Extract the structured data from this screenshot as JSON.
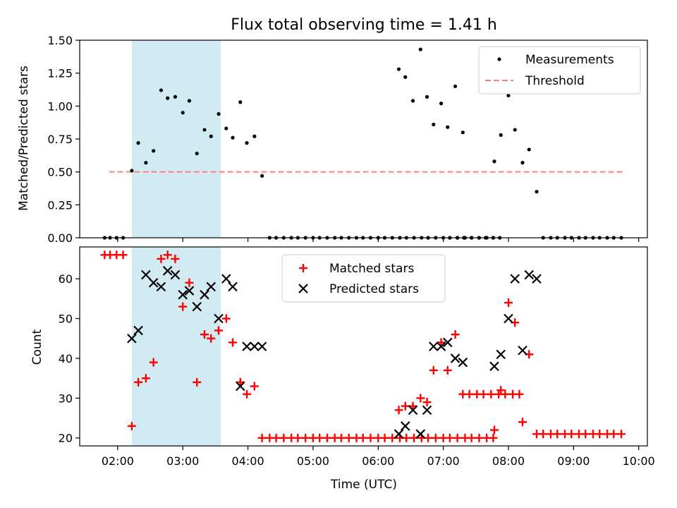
{
  "figure": {
    "title": "Flux total observing time = 1.41 h"
  },
  "chart_data": [
    {
      "type": "scatter",
      "ylabel": "Matched/Predicted stars",
      "xlim": [
        "01:25",
        "10:08"
      ],
      "ylim": [
        0,
        1.5
      ],
      "yticks": [
        "0.00",
        "0.25",
        "0.50",
        "0.75",
        "1.00",
        "1.25",
        "1.50"
      ],
      "ytick_values": [
        0,
        0.25,
        0.5,
        0.75,
        1.0,
        1.25,
        1.5
      ],
      "legend": {
        "position": "top-right",
        "entries": [
          "Measurements",
          "Threshold"
        ]
      },
      "shaded_interval": {
        "from": "02:13",
        "to": "03:35",
        "color": "#add8e6"
      },
      "threshold": {
        "name": "Threshold",
        "value": 0.5,
        "from": "01:52",
        "to": "09:45",
        "color": "#ff7f7f"
      },
      "series": [
        {
          "name": "Measurements",
          "color": "#000000",
          "points": [
            [
              "01:48",
              0
            ],
            [
              "01:53",
              0
            ],
            [
              "01:59",
              0
            ],
            [
              "02:05",
              0
            ],
            [
              "02:13",
              0.51
            ],
            [
              "02:19",
              0.72
            ],
            [
              "02:26",
              0.57
            ],
            [
              "02:33",
              0.66
            ],
            [
              "02:40",
              1.12
            ],
            [
              "02:46",
              1.06
            ],
            [
              "02:53",
              1.07
            ],
            [
              "03:00",
              0.95
            ],
            [
              "03:06",
              1.04
            ],
            [
              "03:13",
              0.64
            ],
            [
              "03:20",
              0.82
            ],
            [
              "03:26",
              0.77
            ],
            [
              "03:33",
              0.94
            ],
            [
              "03:40",
              0.83
            ],
            [
              "03:46",
              0.76
            ],
            [
              "03:53",
              1.03
            ],
            [
              "03:59",
              0.72
            ],
            [
              "04:06",
              0.77
            ],
            [
              "04:13",
              0.47
            ],
            [
              "04:20",
              0
            ],
            [
              "04:26",
              0
            ],
            [
              "04:33",
              0
            ],
            [
              "04:40",
              0
            ],
            [
              "04:46",
              0
            ],
            [
              "04:53",
              0
            ],
            [
              "05:00",
              0
            ],
            [
              "05:06",
              0
            ],
            [
              "05:13",
              0
            ],
            [
              "05:20",
              0
            ],
            [
              "05:26",
              0
            ],
            [
              "05:33",
              0
            ],
            [
              "05:40",
              0
            ],
            [
              "05:46",
              0
            ],
            [
              "05:53",
              0
            ],
            [
              "06:00",
              0
            ],
            [
              "06:06",
              0
            ],
            [
              "06:13",
              0
            ],
            [
              "06:20",
              0
            ],
            [
              "06:26",
              0
            ],
            [
              "06:33",
              0
            ],
            [
              "06:40",
              0
            ],
            [
              "06:46",
              0
            ],
            [
              "06:53",
              0
            ],
            [
              "07:00",
              0
            ],
            [
              "07:06",
              0
            ],
            [
              "07:13",
              0
            ],
            [
              "07:20",
              0
            ],
            [
              "07:26",
              0
            ],
            [
              "07:33",
              0
            ],
            [
              "07:40",
              0
            ],
            [
              "07:46",
              0
            ],
            [
              "06:19",
              1.28
            ],
            [
              "06:25",
              1.22
            ],
            [
              "06:32",
              1.04
            ],
            [
              "06:39",
              1.43
            ],
            [
              "06:45",
              1.07
            ],
            [
              "06:51",
              0.86
            ],
            [
              "06:58",
              1.02
            ],
            [
              "07:04",
              0.84
            ],
            [
              "07:11",
              1.15
            ],
            [
              "07:18",
              0.8
            ],
            [
              "07:06",
              0
            ],
            [
              "07:13",
              0
            ],
            [
              "07:19",
              0
            ],
            [
              "07:26",
              0
            ],
            [
              "07:33",
              0
            ],
            [
              "07:39",
              0
            ],
            [
              "07:46",
              0
            ],
            [
              "07:52",
              0
            ],
            [
              "07:47",
              0.58
            ],
            [
              "07:53",
              0.78
            ],
            [
              "08:00",
              1.08
            ],
            [
              "08:06",
              0.82
            ],
            [
              "08:13",
              0.57
            ],
            [
              "08:19",
              0.67
            ],
            [
              "08:26",
              0.35
            ],
            [
              "08:32",
              0
            ],
            [
              "08:39",
              0
            ],
            [
              "08:45",
              0
            ],
            [
              "08:52",
              0
            ],
            [
              "08:58",
              0
            ],
            [
              "09:05",
              0
            ],
            [
              "09:11",
              0
            ],
            [
              "09:18",
              0
            ],
            [
              "09:24",
              0
            ],
            [
              "09:31",
              0
            ],
            [
              "09:37",
              0
            ],
            [
              "09:44",
              0
            ]
          ]
        }
      ]
    },
    {
      "type": "scatter",
      "xlabel": "Time (UTC)",
      "ylabel": "Count",
      "xticks": [
        "02:00",
        "03:00",
        "04:00",
        "05:00",
        "06:00",
        "07:00",
        "08:00",
        "09:00",
        "10:00"
      ],
      "xlim": [
        "01:25",
        "10:08"
      ],
      "ylim": [
        18,
        68
      ],
      "yticks": [
        "20",
        "30",
        "40",
        "50",
        "60"
      ],
      "ytick_values": [
        20,
        30,
        40,
        50,
        60
      ],
      "legend": {
        "position": "top-center",
        "entries": [
          "Matched stars",
          "Predicted stars"
        ]
      },
      "shaded_interval": {
        "from": "02:13",
        "to": "03:35",
        "color": "#add8e6"
      },
      "series": [
        {
          "name": "Matched stars",
          "marker": "plus",
          "color": "#ff0000",
          "points": [
            [
              "01:48",
              66
            ],
            [
              "01:53",
              66
            ],
            [
              "01:59",
              66
            ],
            [
              "02:05",
              66
            ],
            [
              "02:13",
              23
            ],
            [
              "02:19",
              34
            ],
            [
              "02:26",
              35
            ],
            [
              "02:33",
              39
            ],
            [
              "02:40",
              65
            ],
            [
              "02:46",
              66
            ],
            [
              "02:53",
              65
            ],
            [
              "03:00",
              53
            ],
            [
              "03:06",
              59
            ],
            [
              "03:13",
              34
            ],
            [
              "03:20",
              46
            ],
            [
              "03:26",
              45
            ],
            [
              "03:33",
              47
            ],
            [
              "03:40",
              50
            ],
            [
              "03:46",
              44
            ],
            [
              "03:53",
              34
            ],
            [
              "03:59",
              31
            ],
            [
              "04:06",
              33
            ],
            [
              "04:13",
              20
            ],
            [
              "04:20",
              20
            ],
            [
              "04:26",
              20
            ],
            [
              "04:33",
              20
            ],
            [
              "04:40",
              20
            ],
            [
              "04:46",
              20
            ],
            [
              "04:53",
              20
            ],
            [
              "05:00",
              20
            ],
            [
              "05:06",
              20
            ],
            [
              "05:13",
              20
            ],
            [
              "05:20",
              20
            ],
            [
              "05:26",
              20
            ],
            [
              "05:33",
              20
            ],
            [
              "05:40",
              20
            ],
            [
              "05:46",
              20
            ],
            [
              "05:53",
              20
            ],
            [
              "06:00",
              20
            ],
            [
              "06:06",
              20
            ],
            [
              "06:13",
              20
            ],
            [
              "06:20",
              20
            ],
            [
              "06:26",
              20
            ],
            [
              "06:33",
              20
            ],
            [
              "06:40",
              20
            ],
            [
              "06:46",
              20
            ],
            [
              "06:53",
              20
            ],
            [
              "07:00",
              20
            ],
            [
              "07:06",
              20
            ],
            [
              "07:13",
              20
            ],
            [
              "07:20",
              20
            ],
            [
              "07:26",
              20
            ],
            [
              "07:33",
              20
            ],
            [
              "07:40",
              20
            ],
            [
              "07:46",
              20
            ],
            [
              "06:19",
              27
            ],
            [
              "06:25",
              28
            ],
            [
              "06:32",
              28
            ],
            [
              "06:39",
              30
            ],
            [
              "06:45",
              29
            ],
            [
              "06:51",
              37
            ],
            [
              "06:58",
              44
            ],
            [
              "07:04",
              37
            ],
            [
              "07:11",
              46
            ],
            [
              "07:18",
              31
            ],
            [
              "07:24",
              31
            ],
            [
              "07:31",
              31
            ],
            [
              "07:37",
              31
            ],
            [
              "07:44",
              31
            ],
            [
              "07:51",
              31
            ],
            [
              "07:57",
              31
            ],
            [
              "08:04",
              31
            ],
            [
              "08:10",
              31
            ],
            [
              "07:47",
              22
            ],
            [
              "07:53",
              32
            ],
            [
              "08:00",
              54
            ],
            [
              "08:06",
              49
            ],
            [
              "08:13",
              24
            ],
            [
              "08:19",
              41
            ],
            [
              "08:26",
              21
            ],
            [
              "08:32",
              21
            ],
            [
              "08:39",
              21
            ],
            [
              "08:45",
              21
            ],
            [
              "08:52",
              21
            ],
            [
              "08:58",
              21
            ],
            [
              "09:05",
              21
            ],
            [
              "09:11",
              21
            ],
            [
              "09:18",
              21
            ],
            [
              "09:24",
              21
            ],
            [
              "09:31",
              21
            ],
            [
              "09:37",
              21
            ],
            [
              "09:44",
              21
            ]
          ]
        },
        {
          "name": "Predicted stars",
          "marker": "x",
          "color": "#000000",
          "points": [
            [
              "02:13",
              45
            ],
            [
              "02:19",
              47
            ],
            [
              "02:26",
              61
            ],
            [
              "02:33",
              59
            ],
            [
              "02:40",
              58
            ],
            [
              "02:46",
              62
            ],
            [
              "02:53",
              61
            ],
            [
              "03:00",
              56
            ],
            [
              "03:06",
              57
            ],
            [
              "03:13",
              53
            ],
            [
              "03:20",
              56
            ],
            [
              "03:26",
              58
            ],
            [
              "03:33",
              50
            ],
            [
              "03:40",
              60
            ],
            [
              "03:46",
              58
            ],
            [
              "03:53",
              33
            ],
            [
              "03:59",
              43
            ],
            [
              "04:06",
              43
            ],
            [
              "04:13",
              43
            ],
            [
              "06:19",
              21
            ],
            [
              "06:25",
              23
            ],
            [
              "06:32",
              27
            ],
            [
              "06:39",
              21
            ],
            [
              "06:45",
              27
            ],
            [
              "06:51",
              43
            ],
            [
              "06:58",
              43
            ],
            [
              "07:04",
              44
            ],
            [
              "07:11",
              40
            ],
            [
              "07:18",
              39
            ],
            [
              "07:47",
              38
            ],
            [
              "07:53",
              41
            ],
            [
              "08:00",
              50
            ],
            [
              "08:06",
              60
            ],
            [
              "08:13",
              42
            ],
            [
              "08:19",
              61
            ],
            [
              "08:26",
              60
            ]
          ]
        }
      ]
    }
  ]
}
